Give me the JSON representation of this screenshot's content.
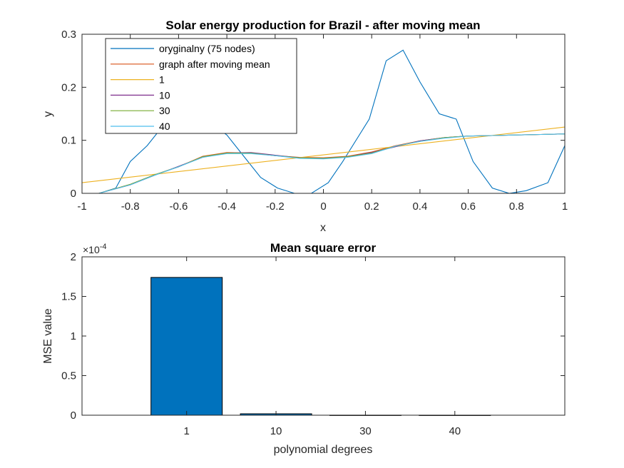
{
  "chart_data": [
    {
      "type": "line",
      "title": "Solar energy production for Brazil - after moving mean",
      "xlabel": "x",
      "ylabel": "y",
      "xlim": [
        -1,
        1
      ],
      "ylim": [
        0,
        0.3
      ],
      "xticks": [
        "-1",
        "-0.8",
        "-0.6",
        "-0.4",
        "-0.2",
        "0",
        "0.2",
        "0.4",
        "0.6",
        "0.8",
        "1"
      ],
      "yticks": [
        "0",
        "0.1",
        "0.2",
        "0.3"
      ],
      "grid": false,
      "legend_position": "top-left",
      "series": [
        {
          "name": "oryginalny (75 nodes)",
          "color": "#0072BD",
          "x": [
            -1,
            -0.93,
            -0.86,
            -0.8,
            -0.73,
            -0.66,
            -0.6,
            -0.53,
            -0.46,
            -0.4,
            -0.33,
            -0.26,
            -0.19,
            -0.12,
            -0.05,
            0.02,
            0.08,
            0.19,
            0.26,
            0.33,
            0.4,
            0.48,
            0.55,
            0.62,
            0.7,
            0.77,
            0.84,
            0.93,
            1
          ],
          "y": [
            0,
            0,
            0.01,
            0.06,
            0.09,
            0.13,
            0.155,
            0.15,
            0.13,
            0.11,
            0.07,
            0.03,
            0.01,
            0,
            0,
            0.02,
            0.06,
            0.14,
            0.25,
            0.27,
            0.21,
            0.15,
            0.14,
            0.06,
            0.01,
            0,
            0.005,
            0.02,
            0.09
          ]
        },
        {
          "name": "graph after moving mean",
          "color": "#D95319",
          "x": [
            -0.93,
            -0.8,
            -0.7,
            -0.6,
            -0.5,
            -0.4,
            -0.3,
            -0.2,
            -0.1,
            0,
            0.1,
            0.2,
            0.3,
            0.4,
            0.5,
            0.6,
            0.7,
            0.8,
            0.9,
            1
          ],
          "y": [
            0,
            0.017,
            0.035,
            0.05,
            0.07,
            0.077,
            0.076,
            0.071,
            0.068,
            0.067,
            0.07,
            0.078,
            0.09,
            0.099,
            0.105,
            0.108,
            0.109,
            0.11,
            0.111,
            0.112
          ]
        },
        {
          "name": "1",
          "color": "#EDB120",
          "x": [
            -1,
            1
          ],
          "y": [
            0.02,
            0.125
          ]
        },
        {
          "name": "10",
          "color": "#7E2F8E",
          "x": [
            -0.93,
            -0.8,
            -0.7,
            -0.6,
            -0.5,
            -0.4,
            -0.3,
            -0.2,
            -0.1,
            0,
            0.1,
            0.2,
            0.3,
            0.4,
            0.5,
            0.6,
            0.7,
            0.8,
            0.9,
            1
          ],
          "y": [
            0,
            0.016,
            0.034,
            0.051,
            0.068,
            0.076,
            0.077,
            0.072,
            0.067,
            0.066,
            0.069,
            0.077,
            0.088,
            0.099,
            0.105,
            0.108,
            0.109,
            0.11,
            0.111,
            0.112
          ]
        },
        {
          "name": "30",
          "color": "#77AC30",
          "x": [
            -0.93,
            -0.8,
            -0.7,
            -0.6,
            -0.5,
            -0.4,
            -0.3,
            -0.2,
            -0.1,
            0,
            0.1,
            0.2,
            0.3,
            0.4,
            0.5,
            0.6,
            0.7,
            0.8,
            0.9,
            1
          ],
          "y": [
            0,
            0.017,
            0.035,
            0.05,
            0.069,
            0.076,
            0.076,
            0.071,
            0.067,
            0.066,
            0.069,
            0.076,
            0.089,
            0.098,
            0.105,
            0.108,
            0.109,
            0.11,
            0.111,
            0.112
          ]
        },
        {
          "name": "40",
          "color": "#4DBEEE",
          "x": [
            -0.93,
            -0.8,
            -0.7,
            -0.6,
            -0.5,
            -0.4,
            -0.3,
            -0.2,
            -0.1,
            0,
            0.1,
            0.2,
            0.3,
            0.4,
            0.5,
            0.6,
            0.7,
            0.8,
            0.9,
            1
          ],
          "y": [
            0,
            0.016,
            0.034,
            0.05,
            0.068,
            0.075,
            0.075,
            0.071,
            0.066,
            0.065,
            0.068,
            0.075,
            0.089,
            0.098,
            0.104,
            0.108,
            0.109,
            0.11,
            0.111,
            0.112
          ]
        }
      ]
    },
    {
      "type": "bar",
      "title": "Mean square error",
      "xlabel": "polynomial degrees",
      "ylabel": "MSE value",
      "exponent_label": "×10",
      "exponent_power": "-4",
      "categories": [
        "1",
        "10",
        "30",
        "40"
      ],
      "values": [
        1.74,
        0.018,
        0.0008,
        0.0005
      ],
      "ylim": [
        0,
        2
      ],
      "yticks": [
        "0",
        "0.5",
        "1",
        "1.5",
        "2"
      ],
      "bar_color": "#0072BD",
      "grid": false
    }
  ]
}
